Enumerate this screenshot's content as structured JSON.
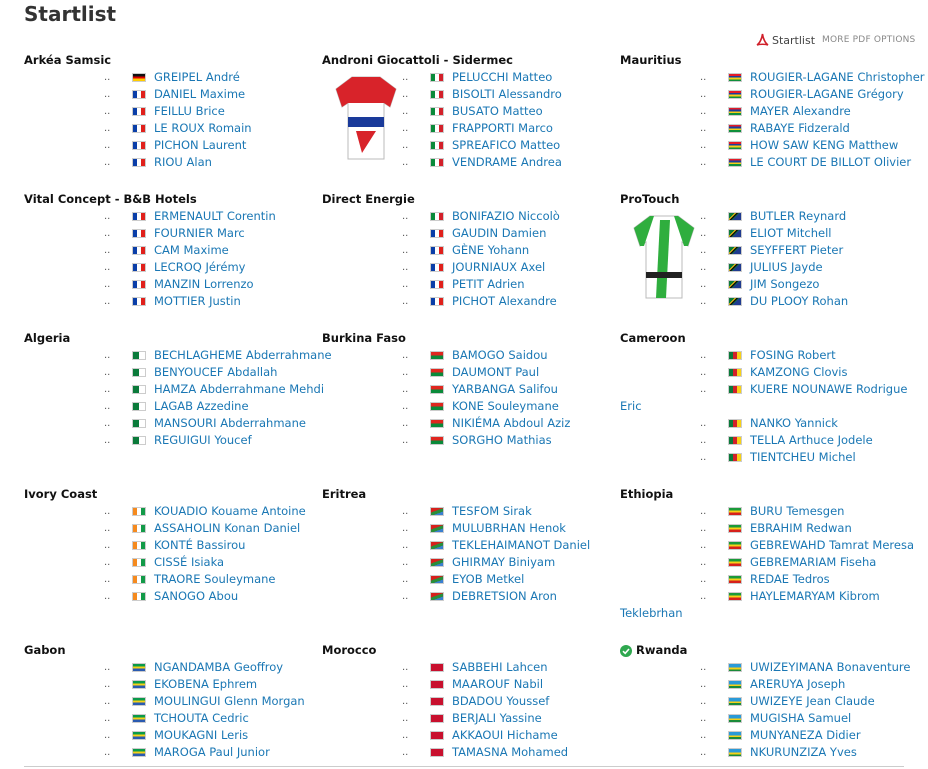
{
  "page": {
    "title": "Startlist",
    "pdf_link": "Startlist",
    "pdf_more": "MORE PDF OPTIONS",
    "dots": ".."
  },
  "teams": [
    {
      "name": "Arkéa Samsic",
      "riders": [
        {
          "name": "GREIPEL André",
          "flag": "de"
        },
        {
          "name": "DANIEL Maxime",
          "flag": "fr"
        },
        {
          "name": "FEILLU Brice",
          "flag": "fr"
        },
        {
          "name": "LE ROUX Romain",
          "flag": "fr"
        },
        {
          "name": "PICHON Laurent",
          "flag": "fr"
        },
        {
          "name": "RIOU Alan",
          "flag": "fr"
        }
      ]
    },
    {
      "name": "Androni Giocattoli - Sidermec",
      "riders": [
        {
          "name": "PELUCCHI Matteo",
          "flag": "it"
        },
        {
          "name": "BISOLTI Alessandro",
          "flag": "it"
        },
        {
          "name": "BUSATO Matteo",
          "flag": "it"
        },
        {
          "name": "FRAPPORTI Marco",
          "flag": "it"
        },
        {
          "name": "SPREAFICO Matteo",
          "flag": "it"
        },
        {
          "name": "VENDRAME Andrea",
          "flag": "it"
        }
      ]
    },
    {
      "name": "Mauritius",
      "riders": [
        {
          "name": "ROUGIER-LAGANE Christopher",
          "flag": "mu"
        },
        {
          "name": "ROUGIER-LAGANE Grégory",
          "flag": "mu"
        },
        {
          "name": "MAYER Alexandre",
          "flag": "mu"
        },
        {
          "name": "RABAYE Fidzerald",
          "flag": "mu"
        },
        {
          "name": "HOW SAW KENG Matthew",
          "flag": "mu"
        },
        {
          "name": "LE COURT DE BILLOT Olivier",
          "flag": "mu"
        }
      ]
    },
    {
      "name": "Vital Concept - B&B Hotels",
      "riders": [
        {
          "name": "ERMENAULT Corentin",
          "flag": "fr"
        },
        {
          "name": "FOURNIER Marc",
          "flag": "fr"
        },
        {
          "name": "CAM Maxime",
          "flag": "fr"
        },
        {
          "name": "LECROQ Jérémy",
          "flag": "fr"
        },
        {
          "name": "MANZIN Lorrenzo",
          "flag": "fr"
        },
        {
          "name": "MOTTIER Justin",
          "flag": "fr"
        }
      ]
    },
    {
      "name": "Direct Energie",
      "riders": [
        {
          "name": "BONIFAZIO Niccolò",
          "flag": "it"
        },
        {
          "name": "GAUDIN Damien",
          "flag": "fr"
        },
        {
          "name": "GÈNE Yohann",
          "flag": "fr"
        },
        {
          "name": "JOURNIAUX Axel",
          "flag": "fr"
        },
        {
          "name": "PETIT Adrien",
          "flag": "fr"
        },
        {
          "name": "PICHOT Alexandre",
          "flag": "fr"
        }
      ]
    },
    {
      "name": "ProTouch",
      "riders": [
        {
          "name": "BUTLER Reynard",
          "flag": "za"
        },
        {
          "name": "ELIOT Mitchell",
          "flag": "za"
        },
        {
          "name": "SEYFFERT Pieter",
          "flag": "za"
        },
        {
          "name": "JULIUS Jayde",
          "flag": "za"
        },
        {
          "name": "JIM Songezo",
          "flag": "za"
        },
        {
          "name": "DU PLOOY Rohan",
          "flag": "za"
        }
      ]
    },
    {
      "name": "Algeria",
      "riders": [
        {
          "name": "BECHLAGHEME Abderrahmane",
          "flag": "dz"
        },
        {
          "name": "BENYOUCEF Abdallah",
          "flag": "dz"
        },
        {
          "name": "HAMZA Abderrahmane Mehdi",
          "flag": "dz"
        },
        {
          "name": "LAGAB Azzedine",
          "flag": "dz"
        },
        {
          "name": "MANSOURI Abderrahmane",
          "flag": "dz"
        },
        {
          "name": "REGUIGUI Youcef",
          "flag": "dz"
        }
      ]
    },
    {
      "name": "Burkina Faso",
      "riders": [
        {
          "name": "BAMOGO Saidou",
          "flag": "bf"
        },
        {
          "name": "DAUMONT Paul",
          "flag": "bf"
        },
        {
          "name": "YARBANGA Salifou",
          "flag": "bf"
        },
        {
          "name": "KONE Souleymane",
          "flag": "bf"
        },
        {
          "name": "NIKIÉMA Abdoul Aziz",
          "flag": "bf"
        },
        {
          "name": "SORGHO Mathias",
          "flag": "bf"
        }
      ]
    },
    {
      "name": "Cameroon",
      "riders": [
        {
          "name": "FOSING Robert",
          "flag": "cm"
        },
        {
          "name": "KAMZONG Clovis",
          "flag": "cm"
        },
        {
          "name": "KUERE NOUNAWE Rodrigue",
          "cont": "Eric",
          "flag": "cm"
        },
        {
          "name": "NANKO Yannick",
          "flag": "cm"
        },
        {
          "name": "TELLA Arthuce Jodele",
          "flag": "cm"
        },
        {
          "name": "TIENTCHEU Michel",
          "flag": "cm"
        }
      ]
    },
    {
      "name": "Ivory Coast",
      "riders": [
        {
          "name": "KOUADIO Kouame Antoine",
          "flag": "ci"
        },
        {
          "name": "ASSAHOLIN Konan Daniel",
          "flag": "ci"
        },
        {
          "name": "KONTÉ Bassirou",
          "flag": "ci"
        },
        {
          "name": "CISSÉ Isiaka",
          "flag": "ci"
        },
        {
          "name": "TRAORE Souleymane",
          "flag": "ci"
        },
        {
          "name": "SANOGO Abou",
          "flag": "ci"
        }
      ]
    },
    {
      "name": "Eritrea",
      "riders": [
        {
          "name": "TESFOM Sirak",
          "flag": "er"
        },
        {
          "name": "MULUBRHAN Henok",
          "flag": "er"
        },
        {
          "name": "TEKLEHAIMANOT Daniel",
          "flag": "er"
        },
        {
          "name": "GHIRMAY Biniyam",
          "flag": "er"
        },
        {
          "name": "EYOB Metkel",
          "flag": "er"
        },
        {
          "name": "DEBRETSION Aron",
          "flag": "er"
        }
      ]
    },
    {
      "name": "Ethiopia",
      "riders": [
        {
          "name": "BURU Temesgen",
          "flag": "et"
        },
        {
          "name": "EBRAHIM Redwan",
          "flag": "et"
        },
        {
          "name": "GEBREWAHD Tamrat Meresa",
          "flag": "et"
        },
        {
          "name": "GEBREMARIAM Fiseha",
          "flag": "et"
        },
        {
          "name": "REDAE Tedros",
          "flag": "et"
        },
        {
          "name": "HAYLEMARYAM Kibrom",
          "cont": "Teklebrhan",
          "flag": "et"
        }
      ]
    },
    {
      "name": "Gabon",
      "riders": [
        {
          "name": "NGANDAMBA Geoffroy",
          "flag": "ga"
        },
        {
          "name": "EKOBENA Ephrem",
          "flag": "ga"
        },
        {
          "name": "MOULINGUI Glenn Morgan",
          "flag": "ga"
        },
        {
          "name": "TCHOUTA Cedric",
          "flag": "ga"
        },
        {
          "name": "MOUKAGNI Leris",
          "flag": "ga"
        },
        {
          "name": "MAROGA Paul Junior",
          "flag": "ga"
        }
      ]
    },
    {
      "name": "Morocco",
      "riders": [
        {
          "name": "SABBEHI Lahcen",
          "flag": "ma"
        },
        {
          "name": "MAAROUF Nabil",
          "flag": "ma"
        },
        {
          "name": "BDADOU Youssef",
          "flag": "ma"
        },
        {
          "name": "BERJALI Yassine",
          "flag": "ma"
        },
        {
          "name": "AKKAOUI Hichame",
          "flag": "ma"
        },
        {
          "name": "TAMASNA Mohamed",
          "flag": "ma"
        }
      ]
    },
    {
      "name": "Rwanda",
      "winner": true,
      "riders": [
        {
          "name": "UWIZEYIMANA Bonaventure",
          "flag": "rw"
        },
        {
          "name": "ARERUYA Joseph",
          "flag": "rw"
        },
        {
          "name": "UWIZEYE Jean Claude",
          "flag": "rw"
        },
        {
          "name": "MUGISHA Samuel",
          "flag": "rw"
        },
        {
          "name": "MUNYANEZA Didier",
          "flag": "rw"
        },
        {
          "name": "NKURUNZIZA Yves",
          "flag": "rw"
        }
      ]
    }
  ]
}
